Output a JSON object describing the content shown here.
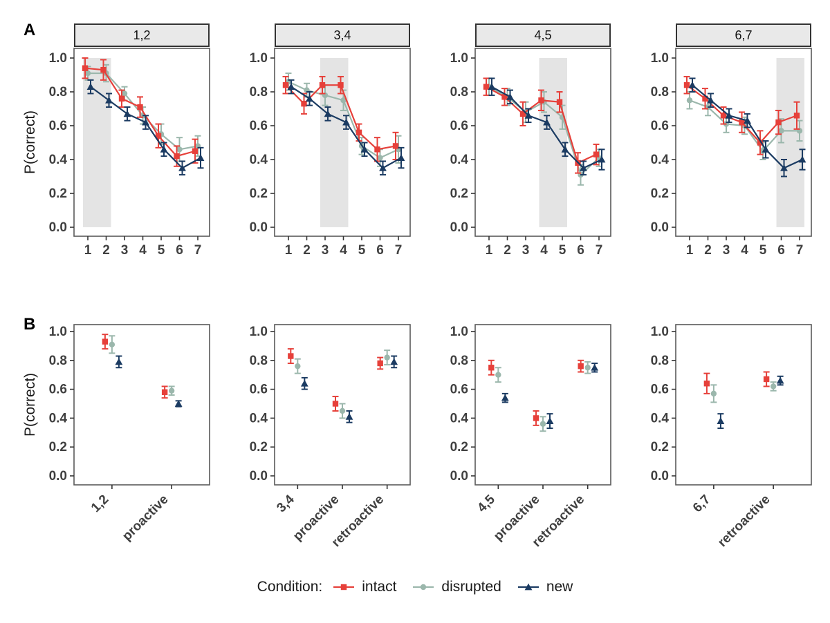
{
  "panel_labels": {
    "a": "A",
    "b": "B"
  },
  "ylabel": "P(correct)",
  "colors": {
    "intact": "#e6403a",
    "disrupted": "#9bb7ac",
    "new": "#1b3b62",
    "band": "#e4e4e4",
    "strip_bg": "#e9e9e9",
    "axis_text": "#404040",
    "panel_border": "#595959"
  },
  "legend": {
    "title": "Condition:",
    "items": [
      {
        "label": "intact",
        "marker": "square",
        "color": "#e6403a"
      },
      {
        "label": "disrupted",
        "marker": "circle",
        "color": "#9bb7ac"
      },
      {
        "label": "new",
        "marker": "triangle",
        "color": "#1b3b62"
      }
    ]
  },
  "chart_data": [
    {
      "type": "line",
      "row": "A",
      "ylabel": "P(correct)",
      "ylim": [
        0.0,
        1.0
      ],
      "yticks": [
        0.0,
        0.2,
        0.4,
        0.6,
        0.8,
        1.0
      ],
      "x": [
        1,
        2,
        3,
        4,
        5,
        6,
        7
      ],
      "legend_position": "bottom",
      "grid": false,
      "facets": [
        {
          "label": "1,2",
          "band": [
            1,
            2
          ],
          "series": [
            {
              "name": "intact",
              "values": [
                0.94,
                0.93,
                0.76,
                0.71,
                0.54,
                0.42,
                0.45
              ],
              "err": [
                0.06,
                0.06,
                0.05,
                0.06,
                0.07,
                0.06,
                0.07
              ]
            },
            {
              "name": "disrupted",
              "values": [
                0.91,
                0.91,
                0.79,
                0.66,
                0.55,
                0.46,
                0.48
              ],
              "err": [
                0.04,
                0.05,
                0.04,
                0.05,
                0.06,
                0.07,
                0.06
              ]
            },
            {
              "name": "new",
              "values": [
                0.83,
                0.75,
                0.67,
                0.62,
                0.46,
                0.35,
                0.41
              ],
              "err": [
                0.04,
                0.04,
                0.04,
                0.04,
                0.04,
                0.04,
                0.06
              ]
            }
          ]
        },
        {
          "label": "3,4",
          "band": [
            3,
            4
          ],
          "series": [
            {
              "name": "intact",
              "values": [
                0.84,
                0.73,
                0.84,
                0.84,
                0.56,
                0.46,
                0.48
              ],
              "err": [
                0.05,
                0.06,
                0.05,
                0.05,
                0.05,
                0.07,
                0.08
              ]
            },
            {
              "name": "disrupted",
              "values": [
                0.86,
                0.81,
                0.78,
                0.75,
                0.48,
                0.41,
                0.46
              ],
              "err": [
                0.05,
                0.04,
                0.06,
                0.06,
                0.05,
                0.05,
                0.08
              ]
            },
            {
              "name": "new",
              "values": [
                0.83,
                0.76,
                0.67,
                0.62,
                0.46,
                0.35,
                0.41
              ],
              "err": [
                0.04,
                0.04,
                0.04,
                0.04,
                0.04,
                0.04,
                0.06
              ]
            }
          ]
        },
        {
          "label": "4,5",
          "band": [
            4,
            5
          ],
          "series": [
            {
              "name": "intact",
              "values": [
                0.83,
                0.77,
                0.67,
                0.75,
                0.74,
                0.38,
                0.43
              ],
              "err": [
                0.05,
                0.05,
                0.07,
                0.06,
                0.06,
                0.06,
                0.06
              ]
            },
            {
              "name": "disrupted",
              "values": [
                0.83,
                0.77,
                0.68,
                0.74,
                0.65,
                0.31,
                0.41
              ],
              "err": [
                0.05,
                0.05,
                0.06,
                0.06,
                0.07,
                0.06,
                0.05
              ]
            },
            {
              "name": "new",
              "values": [
                0.83,
                0.77,
                0.66,
                0.62,
                0.46,
                0.35,
                0.4
              ],
              "err": [
                0.05,
                0.04,
                0.04,
                0.04,
                0.04,
                0.04,
                0.06
              ]
            }
          ]
        },
        {
          "label": "6,7",
          "band": [
            6,
            7
          ],
          "series": [
            {
              "name": "intact",
              "values": [
                0.84,
                0.76,
                0.66,
                0.62,
                0.5,
                0.62,
                0.66
              ],
              "err": [
                0.05,
                0.06,
                0.05,
                0.06,
                0.07,
                0.07,
                0.08
              ]
            },
            {
              "name": "disrupted",
              "values": [
                0.75,
                0.71,
                0.61,
                0.6,
                0.45,
                0.57,
                0.57
              ],
              "err": [
                0.05,
                0.05,
                0.05,
                0.05,
                0.05,
                0.07,
                0.06
              ]
            },
            {
              "name": "new",
              "values": [
                0.84,
                0.75,
                0.66,
                0.63,
                0.46,
                0.35,
                0.4
              ],
              "err": [
                0.04,
                0.04,
                0.04,
                0.04,
                0.05,
                0.05,
                0.06
              ]
            }
          ]
        }
      ]
    },
    {
      "type": "scatter",
      "row": "B",
      "ylabel": "P(correct)",
      "ylim": [
        0.0,
        1.0
      ],
      "yticks": [
        0.0,
        0.2,
        0.4,
        0.6,
        0.8,
        1.0
      ],
      "grid": false,
      "facets": [
        {
          "label": "1,2",
          "categories": [
            "1,2",
            "proactive"
          ],
          "series": [
            {
              "name": "intact",
              "values": [
                0.93,
                0.58
              ],
              "err": [
                0.05,
                0.04
              ]
            },
            {
              "name": "disrupted",
              "values": [
                0.91,
                0.59
              ],
              "err": [
                0.06,
                0.03
              ]
            },
            {
              "name": "new",
              "values": [
                0.79,
                0.5
              ],
              "err": [
                0.04,
                0.02
              ]
            }
          ]
        },
        {
          "label": "3,4",
          "categories": [
            "3,4",
            "proactive",
            "retroactive"
          ],
          "series": [
            {
              "name": "intact",
              "values": [
                0.83,
                0.5,
                0.78
              ],
              "err": [
                0.05,
                0.05,
                0.04
              ]
            },
            {
              "name": "disrupted",
              "values": [
                0.76,
                0.45,
                0.82
              ],
              "err": [
                0.05,
                0.05,
                0.05
              ]
            },
            {
              "name": "new",
              "values": [
                0.64,
                0.41,
                0.79
              ],
              "err": [
                0.04,
                0.04,
                0.04
              ]
            }
          ]
        },
        {
          "label": "4,5",
          "categories": [
            "4,5",
            "proactive",
            "retroactive"
          ],
          "series": [
            {
              "name": "intact",
              "values": [
                0.75,
                0.4,
                0.76
              ],
              "err": [
                0.05,
                0.05,
                0.04
              ]
            },
            {
              "name": "disrupted",
              "values": [
                0.7,
                0.36,
                0.75
              ],
              "err": [
                0.05,
                0.05,
                0.04
              ]
            },
            {
              "name": "new",
              "values": [
                0.54,
                0.38,
                0.75
              ],
              "err": [
                0.03,
                0.05,
                0.03
              ]
            }
          ]
        },
        {
          "label": "6,7",
          "categories": [
            "6,7",
            "retroactive"
          ],
          "series": [
            {
              "name": "intact",
              "values": [
                0.64,
                0.67
              ],
              "err": [
                0.07,
                0.05
              ]
            },
            {
              "name": "disrupted",
              "values": [
                0.57,
                0.62
              ],
              "err": [
                0.06,
                0.03
              ]
            },
            {
              "name": "new",
              "values": [
                0.38,
                0.66
              ],
              "err": [
                0.05,
                0.03
              ]
            }
          ]
        }
      ]
    }
  ]
}
